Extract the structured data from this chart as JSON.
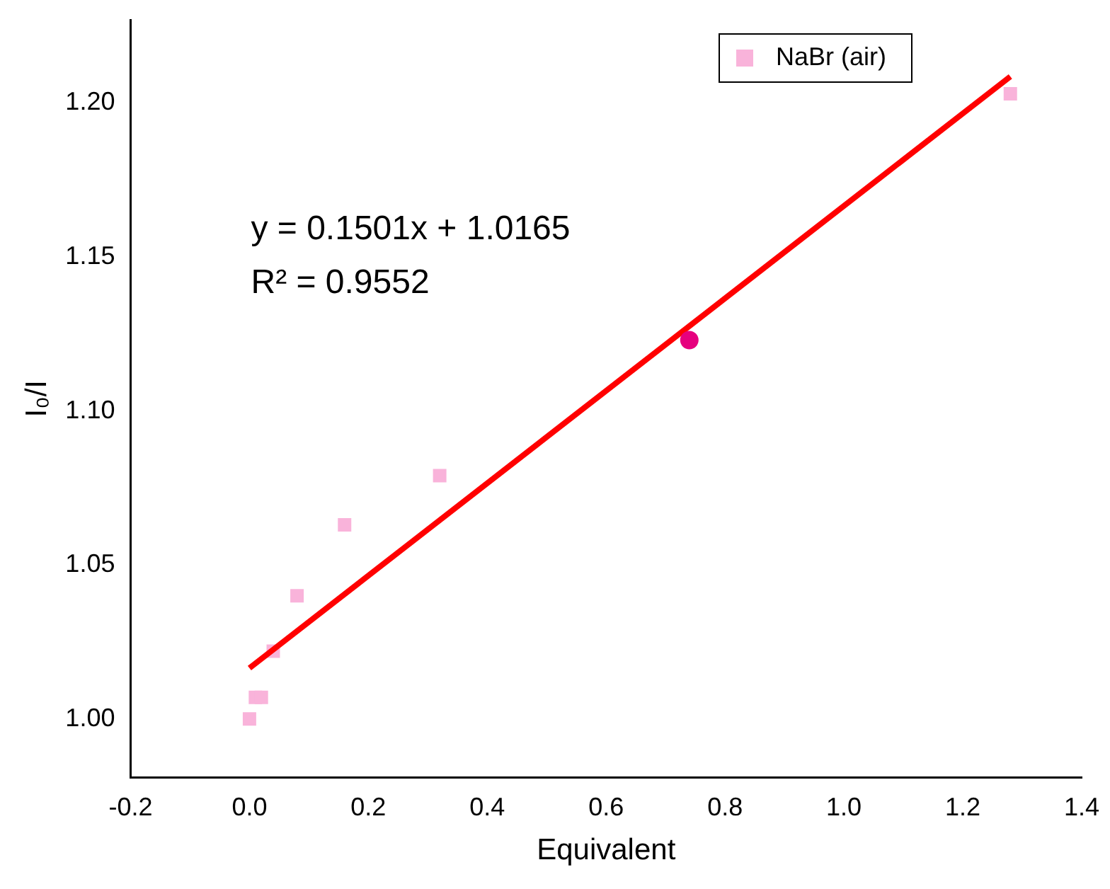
{
  "chart_data": {
    "type": "scatter",
    "xlabel": "Equivalent",
    "ylabel": "I₀/I",
    "series": [
      {
        "name": "NaBr (air)",
        "color": "#f9b3da",
        "marker": "square",
        "x": [
          0,
          0.01,
          0.02,
          0.04,
          0.08,
          0.16,
          0.32,
          1.28
        ],
        "values": [
          1.0,
          1.007,
          1.007,
          1.022,
          1.04,
          1.063,
          1.079,
          1.203
        ]
      },
      {
        "type": "line",
        "color": "#ff0000",
        "marker": "none",
        "x": [
          0,
          1.28
        ],
        "values": [
          1.0165,
          1.2086
        ]
      },
      {
        "color": "#e6007e",
        "marker": "circle",
        "x": [
          0.74
        ],
        "values": [
          1.123
        ]
      }
    ],
    "xlim": [
      -0.2,
      1.4
    ],
    "xticks": [
      -0.2,
      {
        "value": 0,
        "label": "0.0"
      },
      0.2,
      0.4,
      0.6,
      0.8,
      {
        "value": 1,
        "label": "1.0"
      },
      1.2,
      1.4
    ],
    "ylim": [
      0.981,
      1.227
    ],
    "yticks": [
      {
        "value": 1,
        "label": "1.00"
      },
      1.05,
      {
        "value": 1.1,
        "label": "1.10"
      },
      1.15,
      {
        "value": 1.2,
        "label": "1.20"
      }
    ],
    "grid": false,
    "legend": "top right",
    "annotations": [
      "y = 0.1501x + 1.0165",
      "R² = 0.9552"
    ]
  }
}
